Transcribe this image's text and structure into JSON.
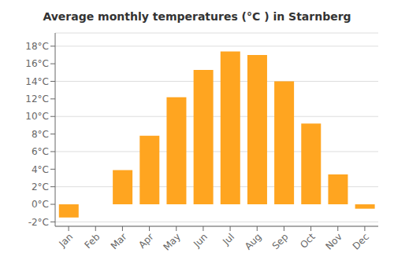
{
  "chart_data": {
    "type": "bar",
    "title": "Average monthly temperatures (°C ) in Starnberg",
    "categories": [
      "Jan",
      "Feb",
      "Mar",
      "Apr",
      "May",
      "Jun",
      "Jul",
      "Aug",
      "Sep",
      "Oct",
      "Nov",
      "Dec"
    ],
    "values": [
      -1.5,
      0.0,
      3.9,
      7.8,
      12.2,
      15.3,
      17.4,
      17.0,
      14.0,
      9.2,
      3.4,
      -0.5
    ],
    "color": "#FFA520",
    "ylim": [
      -2.5,
      19.5
    ],
    "yticks": [
      {
        "value": -2,
        "label": "-2°C"
      },
      {
        "value": 0,
        "label": "0°C"
      },
      {
        "value": 2,
        "label": "2°C"
      },
      {
        "value": 4,
        "label": "4°C"
      },
      {
        "value": 6,
        "label": "6°C"
      },
      {
        "value": 8,
        "label": "8°C"
      },
      {
        "value": 10,
        "label": "10°C"
      },
      {
        "value": 12,
        "label": "12°C"
      },
      {
        "value": 14,
        "label": "14°C"
      },
      {
        "value": 16,
        "label": "16°C"
      },
      {
        "value": 18,
        "label": "18°C"
      }
    ],
    "grid": true
  }
}
